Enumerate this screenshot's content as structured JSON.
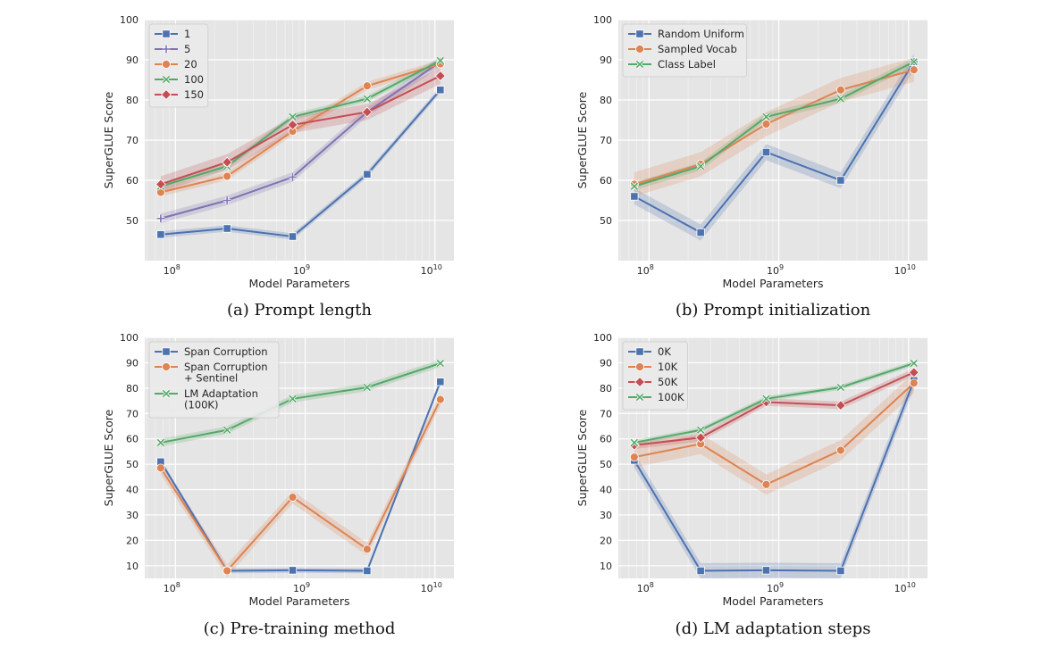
{
  "chart_data": [
    {
      "type": "line",
      "caption": "(a) Prompt length",
      "xlabel": "Model Parameters",
      "ylabel": "SuperGLUE Score",
      "xscale": "log",
      "xticks": [
        "10^8",
        "10^9",
        "10^10"
      ],
      "ylim": [
        40,
        100
      ],
      "yticks": [
        50,
        60,
        70,
        80,
        90,
        100
      ],
      "legend": "top-left",
      "x": [
        77000000.0,
        250000000.0,
        800000000.0,
        3000000000.0,
        11000000000.0
      ],
      "series": [
        {
          "name": "1",
          "color": "#4c72b0",
          "marker": "square",
          "values": [
            46.5,
            48,
            46,
            61.5,
            82.5
          ],
          "band": 0.8
        },
        {
          "name": "5",
          "color": "#8172b3",
          "marker": "plus",
          "values": [
            50.5,
            55,
            60.8,
            77,
            89.5
          ],
          "band": 1.2
        },
        {
          "name": "20",
          "color": "#dd8452",
          "marker": "circle",
          "values": [
            57,
            61,
            72.2,
            83.5,
            89
          ],
          "band": 1.0
        },
        {
          "name": "100",
          "color": "#55a868",
          "marker": "x",
          "values": [
            58.5,
            63.5,
            75.8,
            80.3,
            89.8
          ],
          "band": 0.8
        },
        {
          "name": "150",
          "color": "#c44e52",
          "marker": "diamond",
          "values": [
            59,
            64.5,
            73.8,
            77,
            86
          ],
          "band": 2.0
        }
      ]
    },
    {
      "type": "line",
      "caption": "(b) Prompt initialization",
      "xlabel": "Model Parameters",
      "ylabel": "SuperGLUE Score",
      "xscale": "log",
      "xticks": [
        "10^8",
        "10^9",
        "10^10"
      ],
      "ylim": [
        40,
        100
      ],
      "yticks": [
        50,
        60,
        70,
        80,
        90,
        100
      ],
      "legend": "top-left",
      "x": [
        77000000.0,
        250000000.0,
        800000000.0,
        3000000000.0,
        11000000000.0
      ],
      "series": [
        {
          "name": "Random Uniform",
          "color": "#4c72b0",
          "marker": "square",
          "values": [
            56,
            47,
            67,
            60,
            89.5
          ],
          "band": 2.0
        },
        {
          "name": "Sampled Vocab",
          "color": "#dd8452",
          "marker": "circle",
          "values": [
            59,
            64,
            74,
            82.5,
            87.5
          ],
          "band": 3.0
        },
        {
          "name": "Class Label",
          "color": "#55a868",
          "marker": "x",
          "values": [
            58.5,
            63.5,
            75.8,
            80.3,
            89.5
          ],
          "band": 1.0
        }
      ]
    },
    {
      "type": "line",
      "caption": "(c) Pre-training method",
      "xlabel": "Model Parameters",
      "ylabel": "SuperGLUE Score",
      "xscale": "log",
      "xticks": [
        "10^8",
        "10^9",
        "10^10"
      ],
      "ylim": [
        5,
        100
      ],
      "yticks": [
        10,
        20,
        30,
        40,
        50,
        60,
        70,
        80,
        90,
        100
      ],
      "legend": "top-left",
      "x": [
        77000000.0,
        250000000.0,
        800000000.0,
        3000000000.0,
        11000000000.0
      ],
      "series": [
        {
          "name": "Span Corruption",
          "color": "#4c72b0",
          "marker": "square",
          "values": [
            51,
            8,
            8.2,
            8,
            82.5
          ],
          "band": 1.0
        },
        {
          "name": "Span Corruption\n+ Sentinel",
          "color": "#dd8452",
          "marker": "circle",
          "values": [
            48.5,
            8,
            37,
            16.5,
            75.5
          ],
          "band": 2.5
        },
        {
          "name": "LM Adaptation\n(100K)",
          "color": "#55a868",
          "marker": "x",
          "values": [
            58.5,
            63.5,
            75.8,
            80.3,
            89.8
          ],
          "band": 1.5
        }
      ]
    },
    {
      "type": "line",
      "caption": "(d) LM adaptation steps",
      "xlabel": "Model Parameters",
      "ylabel": "SuperGLUE Score",
      "xscale": "log",
      "xticks": [
        "10^8",
        "10^9",
        "10^10"
      ],
      "ylim": [
        5,
        100
      ],
      "yticks": [
        10,
        20,
        30,
        40,
        50,
        60,
        70,
        80,
        90,
        100
      ],
      "legend": "top-left",
      "x": [
        77000000.0,
        250000000.0,
        800000000.0,
        3000000000.0,
        11000000000.0
      ],
      "series": [
        {
          "name": "0K",
          "color": "#4c72b0",
          "marker": "square",
          "values": [
            51.5,
            8,
            8.2,
            8,
            83
          ],
          "band": 3.0
        },
        {
          "name": "10K",
          "color": "#dd8452",
          "marker": "circle",
          "values": [
            52.8,
            58,
            42,
            55.5,
            82
          ],
          "band": 4.0
        },
        {
          "name": "50K",
          "color": "#c44e52",
          "marker": "diamond",
          "values": [
            57.5,
            60.5,
            74.5,
            73.2,
            86.2
          ],
          "band": 1.5
        },
        {
          "name": "100K",
          "color": "#55a868",
          "marker": "x",
          "values": [
            58.5,
            63.5,
            75.8,
            80.3,
            89.8
          ],
          "band": 1.0
        }
      ]
    }
  ]
}
